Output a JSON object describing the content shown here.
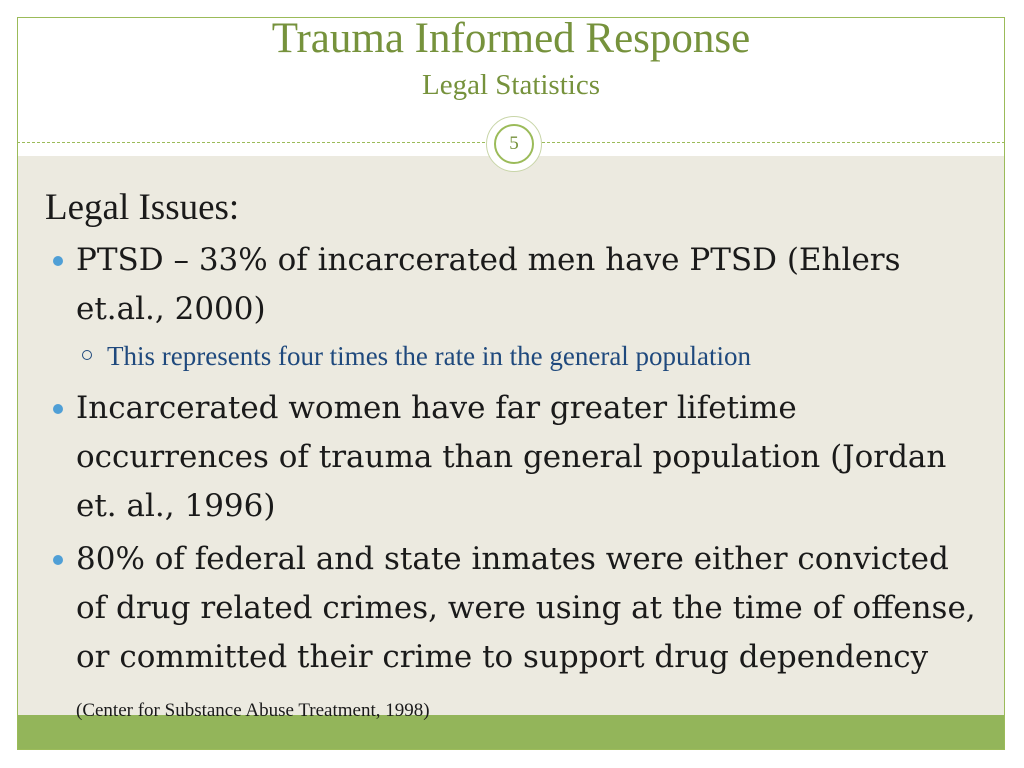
{
  "slide": {
    "title": "Trauma Informed Response",
    "subtitle": "Legal Statistics",
    "number": "5"
  },
  "content": {
    "heading": "Legal Issues:",
    "bullets": [
      {
        "text": "PTSD – 33% of incarcerated men have PTSD (Ehlers  et.al., 2000)",
        "sub": [
          "This represents four times the rate in the general population"
        ]
      },
      {
        "text": "Incarcerated women have far greater lifetime occurrences of trauma than general population (Jordan et. al., 1996)"
      },
      {
        "text": "80% of federal and state inmates were either convicted of drug related crimes, were using at the time of offense, or committed their crime to support drug dependency",
        "citation": "(Center for Substance Abuse Treatment, 1998)"
      }
    ]
  },
  "colors": {
    "title": "#76923c",
    "accent_green": "#93b55a",
    "content_background": "#eceae0",
    "bullet": "#4f9fd6",
    "sub_text": "#1f497d"
  }
}
